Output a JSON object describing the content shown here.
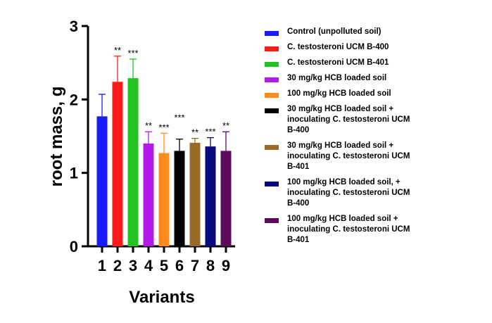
{
  "chart_data": {
    "type": "bar",
    "xlabel": "Variants",
    "ylabel": "root mass, g",
    "ylim": [
      0,
      3
    ],
    "yticks": [
      "0",
      "1",
      "2",
      "3"
    ],
    "categories": [
      "1",
      "2",
      "3",
      "4",
      "5",
      "6",
      "7",
      "8",
      "9"
    ],
    "values": [
      1.77,
      2.24,
      2.29,
      1.4,
      1.27,
      1.3,
      1.41,
      1.36,
      1.3
    ],
    "errors": [
      0.3,
      0.35,
      0.26,
      0.16,
      0.27,
      0.16,
      0.06,
      0.12,
      0.26
    ],
    "significance": [
      {
        "label": "",
        "position": "above-error"
      },
      {
        "label": "**",
        "position": "above-error"
      },
      {
        "label": "***",
        "position": "above-error"
      },
      {
        "label": "**",
        "position": "above-error"
      },
      {
        "label": "***",
        "position": "above-error"
      },
      {
        "label": "***",
        "position": "high"
      },
      {
        "label": "**",
        "position": "above-error"
      },
      {
        "label": "***",
        "position": "above-error"
      },
      {
        "label": "**",
        "position": "above-error"
      }
    ],
    "colors": [
      "#1a1aff",
      "#ff1a1a",
      "#22c322",
      "#b31ae6",
      "#ff8c1a",
      "#000000",
      "#9a6a27",
      "#0a0a80",
      "#5c0a5c"
    ],
    "legend": [
      {
        "label": "Control (unpolluted soil)",
        "color": "#1a1aff"
      },
      {
        "label": "C. testosteroni UCM B-400",
        "color": "#ff1a1a"
      },
      {
        "label": "C. testosteroni UCM B-401",
        "color": "#22c322"
      },
      {
        "label": "30 mg/kg HCB loaded soil",
        "color": "#b31ae6"
      },
      {
        "label": "100 mg/kg HCB loaded soil",
        "color": "#ff8c1a"
      },
      {
        "label": "30 mg/kg HCB loaded soil +\ninoculating C. testosteroni UCM\nB-400",
        "color": "#000000"
      },
      {
        "label": "30 mg/kg HCB loaded soil +\ninoculating C. testosteroni UCM\nB-401",
        "color": "#9a6a27"
      },
      {
        "label": "100 mg/kg HCB loaded soil, +\ninoculating C. testosteroni UCM\nB-400",
        "color": "#0a0a80"
      },
      {
        "label": "100 mg/kg HCB loaded soil +\ninoculating C. testosteroni UCM\nB-401",
        "color": "#5c0a5c"
      }
    ],
    "legend_position": "right",
    "grid": false
  }
}
